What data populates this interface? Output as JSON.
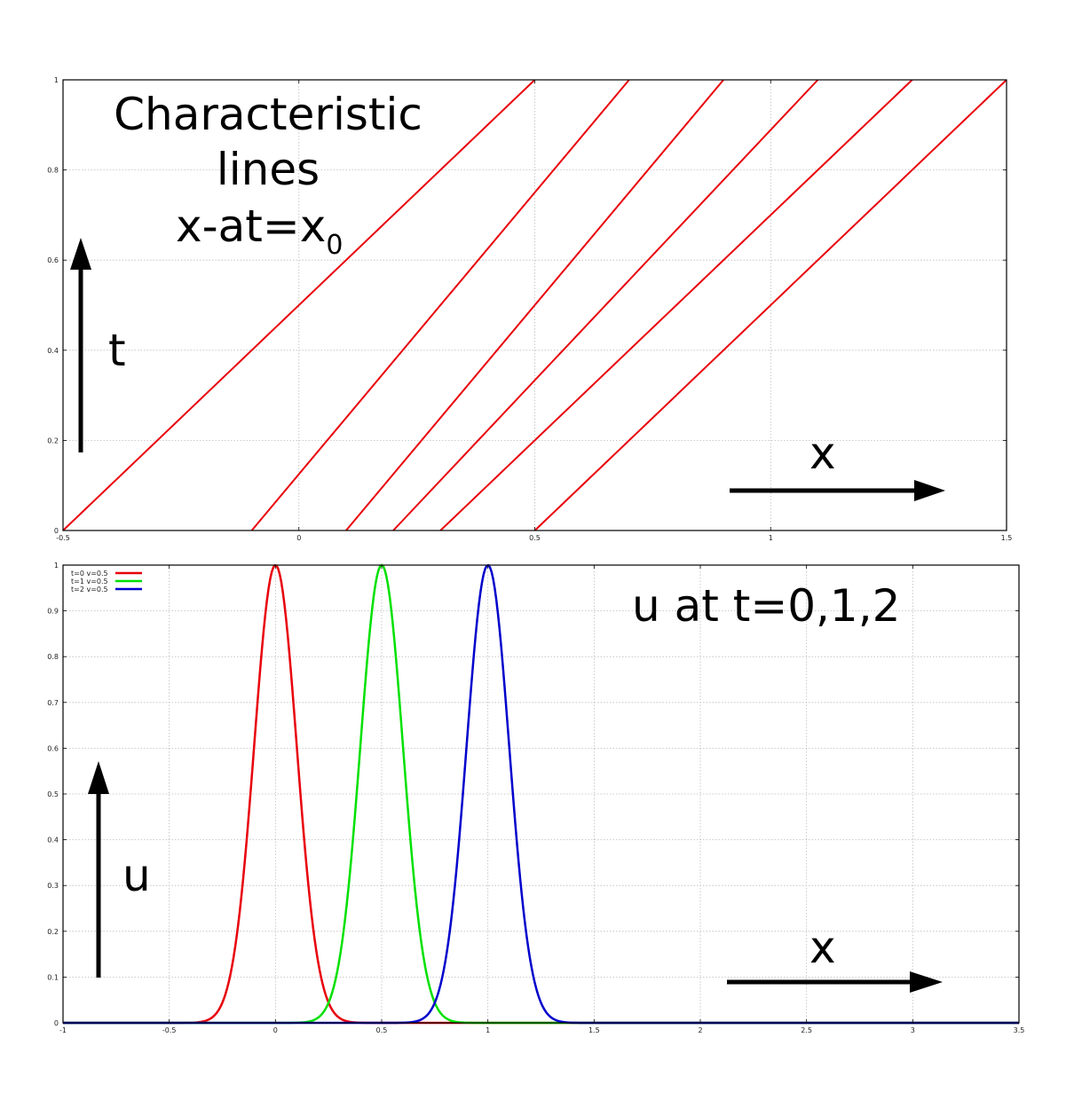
{
  "chart_data": [
    {
      "type": "line",
      "title": "",
      "annotations": {
        "heading": [
          "Characteristic",
          "lines"
        ],
        "equation_main": "x-at=x",
        "equation_sub": "0",
        "t_arrow_label": "t",
        "x_arrow_label": "x"
      },
      "xlim": [
        -0.5,
        1.5
      ],
      "ylim": [
        0,
        1
      ],
      "xticks": [
        "-0.5",
        "0",
        "0.5",
        "1",
        "1.5"
      ],
      "yticks": [
        "0",
        "0.2",
        "0.4",
        "0.6",
        "0.8",
        "1"
      ],
      "grid": true,
      "line_color": "#e8000b",
      "series": [
        {
          "x": [
            -0.5,
            0.5
          ],
          "y": [
            0,
            1
          ]
        },
        {
          "x": [
            -0.1,
            0.7
          ],
          "y": [
            0,
            1
          ]
        },
        {
          "x": [
            0.1,
            0.9
          ],
          "y": [
            0,
            1
          ]
        },
        {
          "x": [
            0.2,
            1.1
          ],
          "y": [
            0,
            1
          ]
        },
        {
          "x": [
            0.3,
            1.3
          ],
          "y": [
            0,
            1
          ]
        },
        {
          "x": [
            0.5,
            1.5
          ],
          "y": [
            0,
            1
          ]
        }
      ]
    },
    {
      "type": "line",
      "title": "",
      "annotations": {
        "heading": "u at t=0,1,2",
        "u_arrow_label": "u",
        "x_arrow_label": "x"
      },
      "xlim": [
        -1,
        3.5
      ],
      "ylim": [
        0,
        1
      ],
      "xticks": [
        "-1",
        "-0.5",
        "0",
        "0.5",
        "1",
        "1.5",
        "2",
        "2.5",
        "3",
        "3.5"
      ],
      "yticks": [
        "0",
        "0.1",
        "0.2",
        "0.3",
        "0.4",
        "0.5",
        "0.6",
        "0.7",
        "0.8",
        "0.9",
        "1"
      ],
      "grid": true,
      "legend_position": "top-left",
      "series": [
        {
          "name": "t=0 v=0.5",
          "color": "#e8000b",
          "center": 0.0,
          "peak": 1.0
        },
        {
          "name": "t=1 v=0.5",
          "color": "#00e000",
          "center": 0.5,
          "peak": 1.0
        },
        {
          "name": "t=2 v=0.5",
          "color": "#0000cc",
          "center": 1.0,
          "peak": 1.0
        }
      ]
    }
  ]
}
